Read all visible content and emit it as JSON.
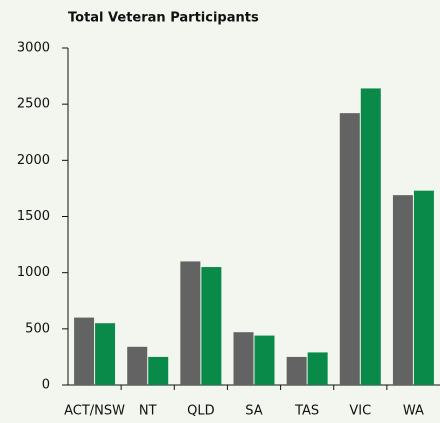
{
  "chart_data": {
    "type": "bar",
    "title": "Total Veteran Participants",
    "categories": [
      "ACT/NSW",
      "NT",
      "QLD",
      "SA",
      "TAS",
      "VIC",
      "WA"
    ],
    "series": [
      {
        "color": "#636363",
        "values": [
          600,
          340,
          1100,
          470,
          250,
          2420,
          1690
        ]
      },
      {
        "color": "#0a8a48",
        "values": [
          550,
          250,
          1050,
          440,
          290,
          2640,
          1730
        ]
      }
    ],
    "ylim": [
      0,
      3000
    ],
    "yticks": [
      0,
      500,
      1000,
      1500,
      2000,
      2500,
      3000
    ],
    "grid": false
  }
}
